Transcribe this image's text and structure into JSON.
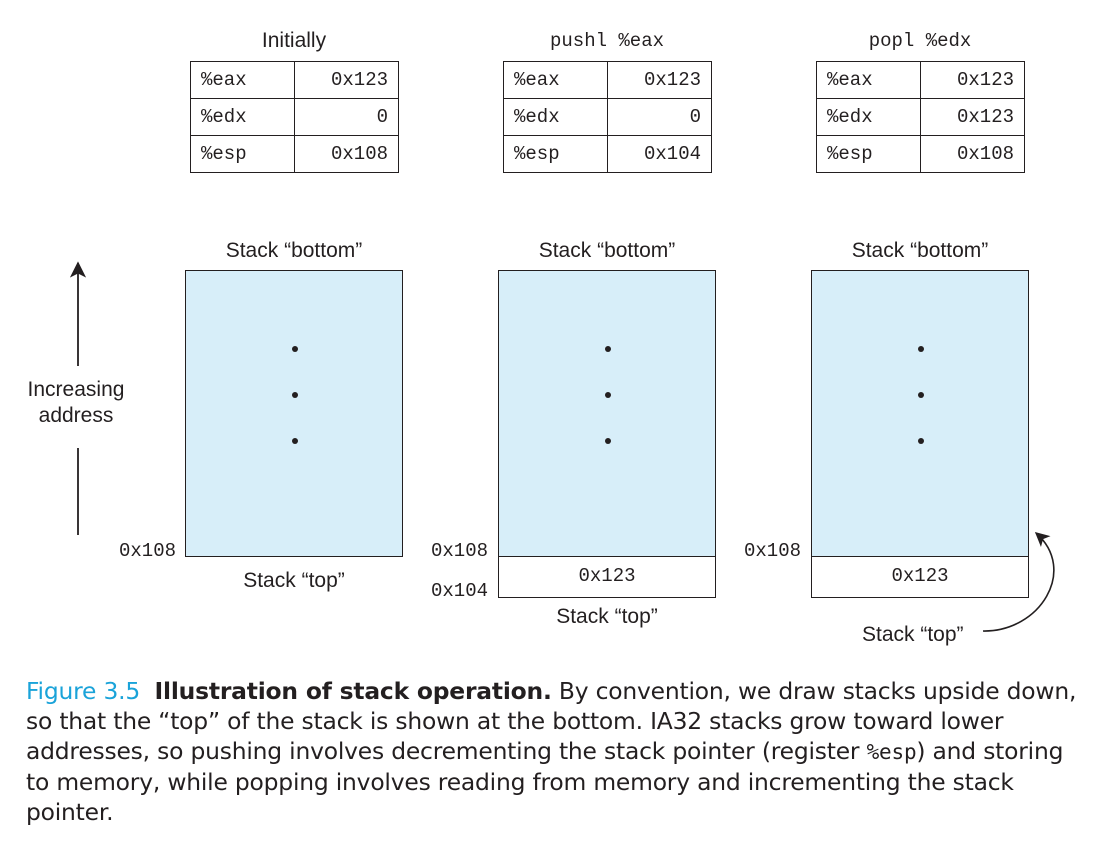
{
  "panels": [
    {
      "title": "Initially",
      "registers": [
        {
          "name": "%eax",
          "value": "0x123"
        },
        {
          "name": "%edx",
          "value": "0"
        },
        {
          "name": "%esp",
          "value": "0x108"
        }
      ],
      "stack_bottom_label": "Stack “bottom”",
      "stack_top_label": "Stack “top”",
      "addresses": [
        "0x108"
      ],
      "cells": []
    },
    {
      "title": "pushl %eax",
      "registers": [
        {
          "name": "%eax",
          "value": "0x123"
        },
        {
          "name": "%edx",
          "value": "0"
        },
        {
          "name": "%esp",
          "value": "0x104"
        }
      ],
      "stack_bottom_label": "Stack “bottom”",
      "stack_top_label": "Stack “top”",
      "addresses": [
        "0x108",
        "0x104"
      ],
      "cells": [
        "0x123"
      ]
    },
    {
      "title": "popl %edx",
      "registers": [
        {
          "name": "%eax",
          "value": "0x123"
        },
        {
          "name": "%edx",
          "value": "0x123"
        },
        {
          "name": "%esp",
          "value": "0x108"
        }
      ],
      "stack_bottom_label": "Stack “bottom”",
      "stack_top_label": "Stack “top”",
      "addresses": [
        "0x108"
      ],
      "cells": [
        "0x123"
      ]
    }
  ],
  "axis": {
    "label_line1": "Increasing",
    "label_line2": "address"
  },
  "caption": {
    "figure_number": "Figure 3.5",
    "bold_title": "Illustration of stack operation.",
    "text_part1": "By convention, we draw stacks upside down, so that the “top” of the stack is shown at the bottom. IA32 stacks grow toward lower addresses, so pushing involves decrementing the stack pointer (register",
    "register": "%esp",
    "text_part2": ") and storing to memory, while popping involves reading from memory and incrementing the stack pointer."
  },
  "colors": {
    "stack_fill": "#d7eef9",
    "figure_number": "#1aa3d9",
    "ink": "#231f20"
  }
}
